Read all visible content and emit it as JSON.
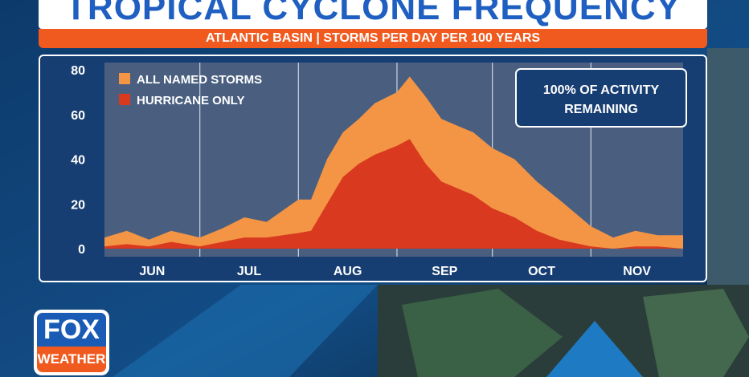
{
  "header": {
    "title": "TROPICAL CYCLONE FREQUENCY",
    "subtitle": "ATLANTIC BASIN | STORMS PER DAY PER 100 YEARS"
  },
  "callout": {
    "line1": "100% OF ACTIVITY",
    "line2": "REMAINING"
  },
  "logo": {
    "top": "FOX",
    "bottom": "WEATHER"
  },
  "colors": {
    "all_named": "#f39544",
    "hurricane": "#d8391f",
    "plot_bg": "#4a5f80",
    "panel_bg": "#173e72",
    "title_blue": "#1f5fc1",
    "subtitle_bar": "#f05a1f"
  },
  "chart_data": {
    "type": "area",
    "title": "TROPICAL CYCLONE FREQUENCY",
    "subtitle": "ATLANTIC BASIN | STORMS PER DAY PER 100 YEARS",
    "xlabel": "",
    "ylabel": "",
    "ylim": [
      0,
      80
    ],
    "yticks": [
      0,
      20,
      40,
      60,
      80
    ],
    "grid": "vertical month dividers",
    "legend_position": "top-left",
    "month_labels": [
      "JUN",
      "JUL",
      "AUG",
      "SEP",
      "OCT",
      "NOV"
    ],
    "x_dates": [
      "Jun 1",
      "Jun 8",
      "Jun 15",
      "Jun 22",
      "Jul 1",
      "Jul 8",
      "Jul 15",
      "Jul 22",
      "Aug 1",
      "Aug 5",
      "Aug 10",
      "Aug 15",
      "Aug 20",
      "Aug 25",
      "Sep 1",
      "Sep 5",
      "Sep 10",
      "Sep 15",
      "Sep 20",
      "Sep 25",
      "Oct 1",
      "Oct 8",
      "Oct 15",
      "Oct 22",
      "Nov 1",
      "Nov 8",
      "Nov 15",
      "Nov 22",
      "Nov 30"
    ],
    "series": [
      {
        "name": "ALL NAMED STORMS",
        "values": [
          5,
          8,
          4,
          8,
          5,
          9,
          14,
          12,
          22,
          22,
          40,
          52,
          58,
          65,
          70,
          77,
          68,
          58,
          55,
          52,
          45,
          40,
          30,
          22,
          10,
          5,
          8,
          6,
          6
        ]
      },
      {
        "name": "HURRICANE ONLY",
        "values": [
          1,
          2,
          1,
          3,
          1,
          3,
          5,
          5,
          7,
          8,
          20,
          32,
          38,
          42,
          46,
          49,
          38,
          30,
          27,
          24,
          18,
          14,
          8,
          4,
          1,
          0,
          1,
          1,
          0
        ]
      }
    ]
  }
}
